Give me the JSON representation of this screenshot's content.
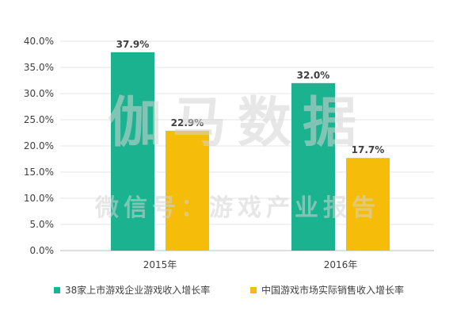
{
  "chart_data": {
    "type": "bar",
    "categories": [
      "2015年",
      "2016年"
    ],
    "series": [
      {
        "name": "38家上市游戏企业游戏收入增长率",
        "values": [
          37.9,
          32.0
        ],
        "color": "#1bb28f"
      },
      {
        "name": "中国游戏市场实际销售收入增长率",
        "values": [
          22.9,
          17.7
        ],
        "color": "#f5bd0a"
      }
    ],
    "data_labels": [
      [
        "37.9%",
        "32.0%"
      ],
      [
        "22.9%",
        "17.7%"
      ]
    ],
    "y_ticks": [
      "0.0%",
      "5.0%",
      "10.0%",
      "15.0%",
      "20.0%",
      "25.0%",
      "30.0%",
      "35.0%",
      "40.0%"
    ],
    "ylim": [
      0,
      40
    ],
    "gridlines": true,
    "legend_position": "bottom-center",
    "title": "",
    "xlabel": "",
    "ylabel": ""
  },
  "watermark": {
    "line1": "伽马数据",
    "line2": "微信号：游戏产业报告"
  }
}
